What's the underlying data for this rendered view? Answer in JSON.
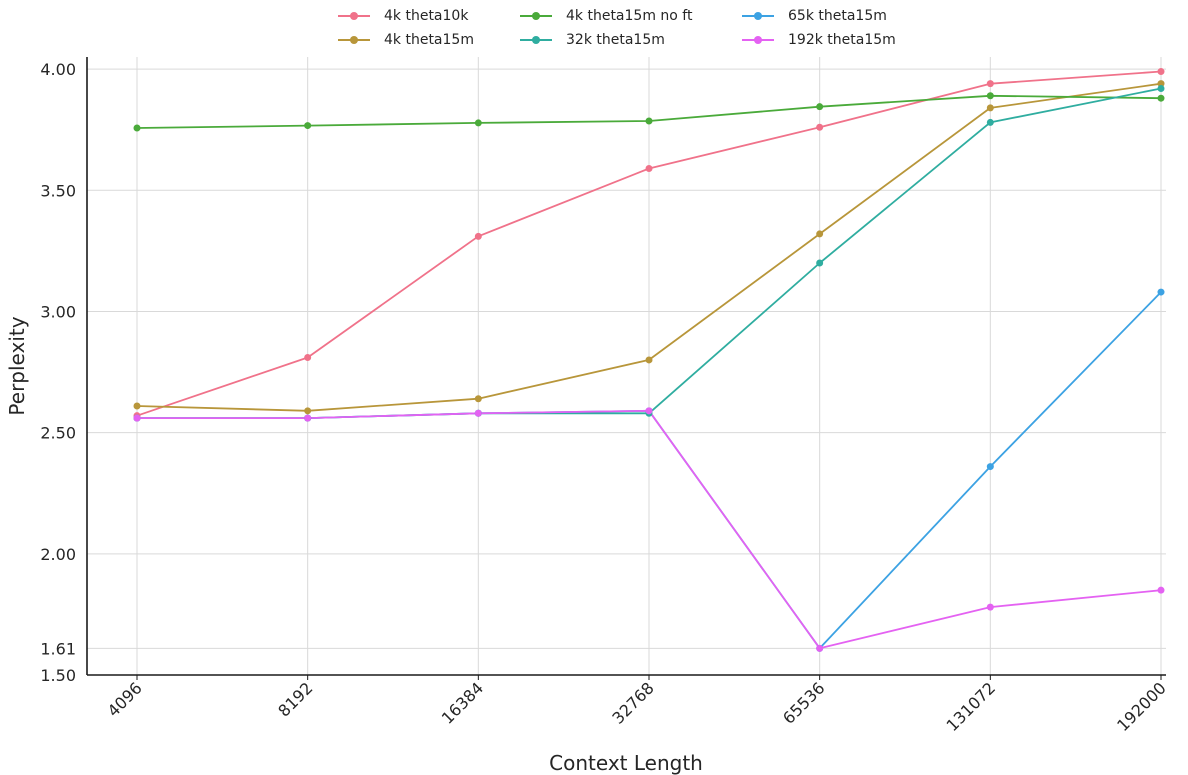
{
  "chart_data": {
    "type": "line",
    "xlabel": "Context Length",
    "ylabel": "Perplexity",
    "categories": [
      "4096",
      "8192",
      "16384",
      "32768",
      "65536",
      "131072",
      "192000"
    ],
    "ylim": [
      1.5,
      4.05
    ],
    "yticks": [
      "1.50",
      "1.61",
      "2.00",
      "2.50",
      "3.00",
      "3.50",
      "4.00"
    ],
    "grid": true,
    "legend_position": "top-center",
    "series": [
      {
        "name": "4k theta10k",
        "color": "#f0728a",
        "values": [
          2.57,
          2.81,
          3.31,
          3.59,
          3.76,
          3.94,
          3.99
        ]
      },
      {
        "name": "4k theta15m",
        "color": "#b8963a",
        "values": [
          2.61,
          2.59,
          2.64,
          2.8,
          3.32,
          3.84,
          3.94
        ]
      },
      {
        "name": "4k theta15m no ft",
        "color": "#4aaa3a",
        "values": [
          3.757,
          3.767,
          3.778,
          3.786,
          3.845,
          3.89,
          3.88
        ]
      },
      {
        "name": "32k theta15m",
        "color": "#2fada0",
        "values": [
          2.56,
          2.56,
          2.58,
          2.58,
          3.2,
          3.78,
          3.92
        ]
      },
      {
        "name": "65k theta15m",
        "color": "#3ca2e3",
        "values": [
          2.56,
          2.56,
          2.58,
          2.59,
          1.61,
          2.36,
          3.08
        ]
      },
      {
        "name": "192k theta15m",
        "color": "#e462f2",
        "values": [
          2.56,
          2.56,
          2.58,
          2.59,
          1.61,
          1.78,
          1.85
        ]
      }
    ]
  }
}
